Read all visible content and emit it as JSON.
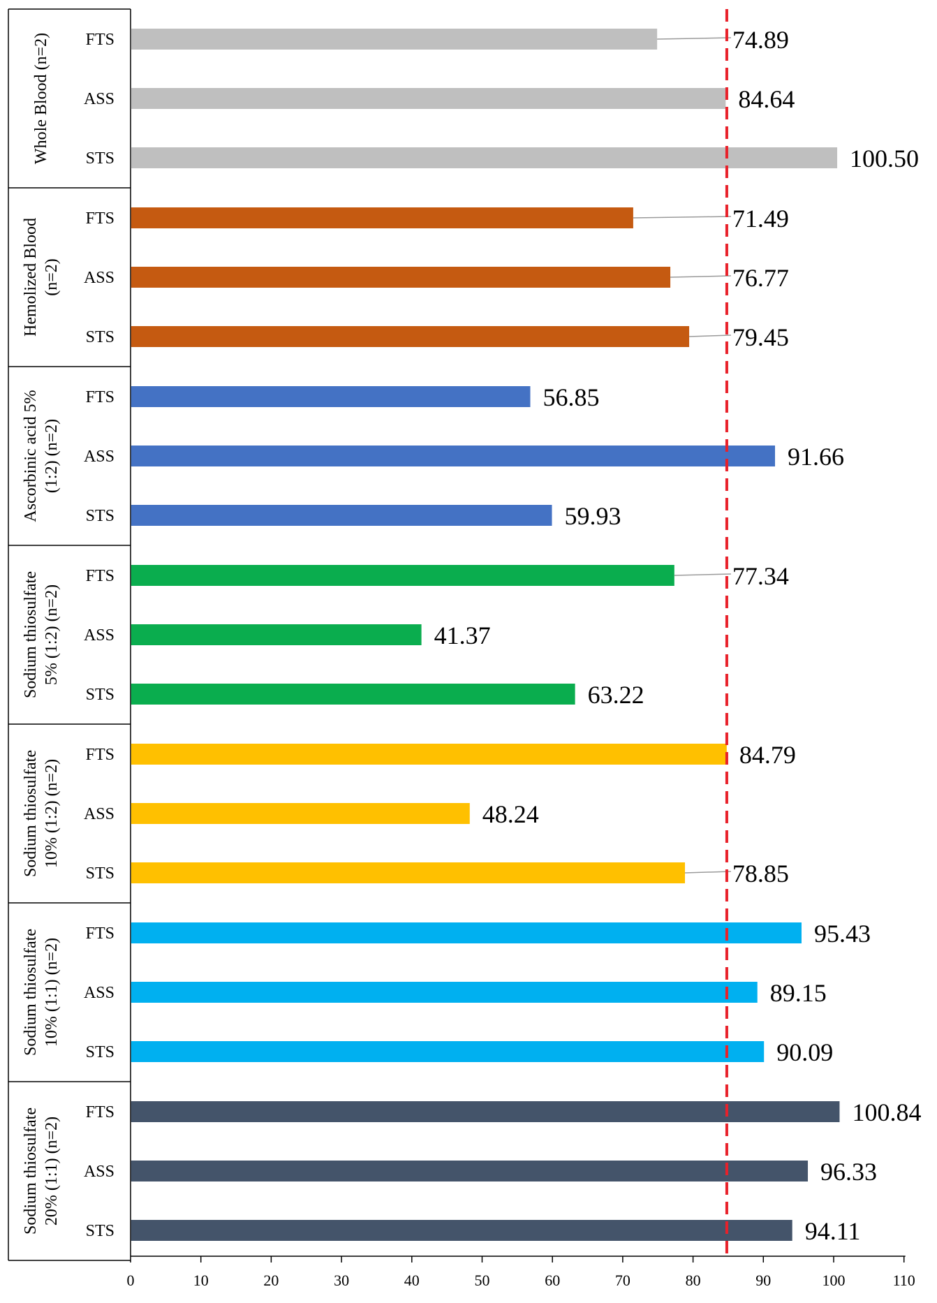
{
  "chart_data": {
    "type": "bar",
    "orientation": "horizontal",
    "xlim": [
      0,
      110
    ],
    "xticks": [
      0,
      10,
      20,
      30,
      40,
      50,
      60,
      70,
      80,
      90,
      100,
      110
    ],
    "reference_line": {
      "value": 84.8,
      "style": "dashed",
      "color": "#e8212a"
    },
    "grid": false,
    "groups": [
      {
        "label_lines": [
          "Whole Blood (n=2)"
        ],
        "color": "#bfbfbf",
        "bars": [
          {
            "category": "FTS",
            "value": 74.89,
            "label": "74.89"
          },
          {
            "category": "ASS",
            "value": 84.64,
            "label": "84.64"
          },
          {
            "category": "STS",
            "value": 100.5,
            "label": "100.50"
          }
        ]
      },
      {
        "label_lines": [
          "Hemolized Blood",
          "(n=2)"
        ],
        "color": "#c55a11",
        "bars": [
          {
            "category": "FTS",
            "value": 71.49,
            "label": "71.49"
          },
          {
            "category": "ASS",
            "value": 76.77,
            "label": "76.77"
          },
          {
            "category": "STS",
            "value": 79.45,
            "label": "79.45"
          }
        ]
      },
      {
        "label_lines": [
          "Ascorbinic acid 5%",
          "(1:2) (n=2)"
        ],
        "color": "#4472c4",
        "bars": [
          {
            "category": "FTS",
            "value": 56.85,
            "label": "56.85"
          },
          {
            "category": "ASS",
            "value": 91.66,
            "label": "91.66"
          },
          {
            "category": "STS",
            "value": 59.93,
            "label": "59.93"
          }
        ]
      },
      {
        "label_lines": [
          "Sodium thiosulfate",
          "5% (1:2) (n=2)"
        ],
        "color": "#0aad4e",
        "bars": [
          {
            "category": "FTS",
            "value": 77.34,
            "label": "77.34"
          },
          {
            "category": "ASS",
            "value": 41.37,
            "label": "41.37"
          },
          {
            "category": "STS",
            "value": 63.22,
            "label": "63.22"
          }
        ]
      },
      {
        "label_lines": [
          "Sodium thiosulfate",
          "10% (1:2) (n=2)"
        ],
        "color": "#ffc000",
        "bars": [
          {
            "category": "FTS",
            "value": 84.79,
            "label": "84.79"
          },
          {
            "category": "ASS",
            "value": 48.24,
            "label": "48.24"
          },
          {
            "category": "STS",
            "value": 78.85,
            "label": "78.85"
          }
        ]
      },
      {
        "label_lines": [
          "Sodium thiosulfate",
          "10% (1:1) (n=2)"
        ],
        "color": "#00b0f0",
        "bars": [
          {
            "category": "FTS",
            "value": 95.43,
            "label": "95.43"
          },
          {
            "category": "ASS",
            "value": 89.15,
            "label": "89.15"
          },
          {
            "category": "STS",
            "value": 90.09,
            "label": "90.09"
          }
        ]
      },
      {
        "label_lines": [
          "Sodium thiosulfate",
          "20% (1:1) (n=2)"
        ],
        "color": "#44546a",
        "bars": [
          {
            "category": "FTS",
            "value": 100.84,
            "label": "100.84"
          },
          {
            "category": "ASS",
            "value": 96.33,
            "label": "96.33"
          },
          {
            "category": "STS",
            "value": 94.11,
            "label": "94.11"
          }
        ]
      }
    ]
  }
}
